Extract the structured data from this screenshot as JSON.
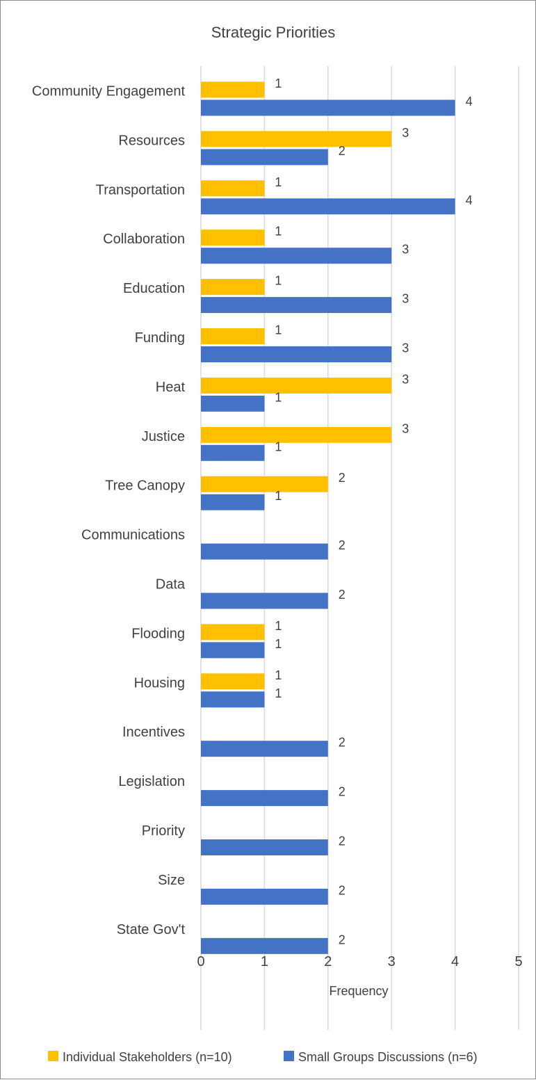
{
  "chart_data": {
    "type": "bar",
    "orientation": "horizontal",
    "title": "Strategic Priorities",
    "xlabel": "Frequency",
    "ylabel": "",
    "xlim": [
      0,
      5
    ],
    "x_ticks": [
      0,
      1,
      2,
      3,
      4,
      5
    ],
    "grid": "vertical",
    "legend_position": "bottom",
    "categories": [
      "Community Engagement",
      "Resources",
      "Transportation",
      "Collaboration",
      "Education",
      "Funding",
      "Heat",
      "Justice",
      "Tree Canopy",
      "Communications",
      "Data",
      "Flooding",
      "Housing",
      "Incentives",
      "Legislation",
      "Priority",
      "Size",
      "State Gov't"
    ],
    "series": [
      {
        "name": "Individual Stakeholders (n=10)",
        "color": "#FFC000",
        "values": [
          1,
          3,
          1,
          1,
          1,
          1,
          3,
          3,
          2,
          null,
          null,
          1,
          1,
          null,
          null,
          null,
          null,
          null
        ]
      },
      {
        "name": "Small Groups Discussions (n=6)",
        "color": "#4472C4",
        "values": [
          4,
          2,
          4,
          3,
          3,
          3,
          1,
          1,
          1,
          2,
          2,
          1,
          1,
          2,
          2,
          2,
          2,
          2
        ]
      }
    ]
  }
}
